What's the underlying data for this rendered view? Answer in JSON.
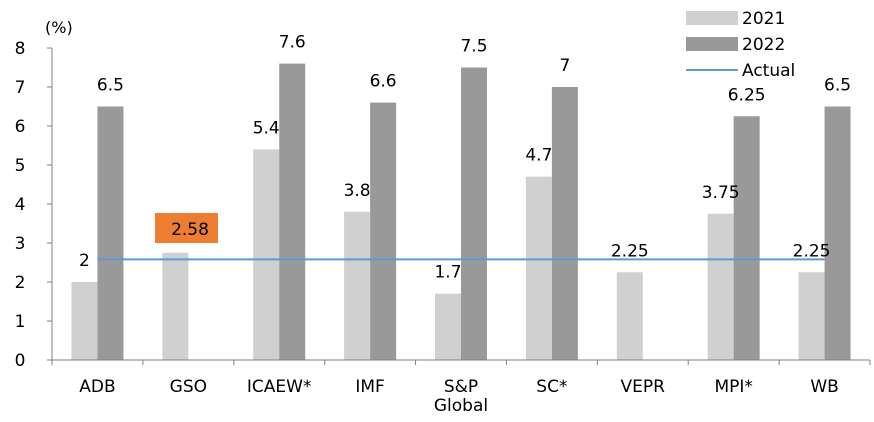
{
  "chart_data": {
    "type": "bar",
    "unit_label": "(%)",
    "categories": [
      "ADB",
      "GSO",
      "ICAEW*",
      "IMF",
      "S&P\nGlobal",
      "SC*",
      "VEPR",
      "MPI*",
      "WB"
    ],
    "series": [
      {
        "name": "2021",
        "color": "#d0d0d0",
        "values": [
          2,
          2.75,
          5.4,
          3.8,
          1.7,
          4.7,
          2.25,
          3.75,
          2.25
        ],
        "labels": [
          "2",
          "",
          "5.4",
          "3.8",
          "1.7",
          "4.7",
          "2.25",
          "3.75",
          "2.25"
        ]
      },
      {
        "name": "2022",
        "color": "#999999",
        "values": [
          6.5,
          null,
          7.6,
          6.6,
          7.5,
          7,
          null,
          6.25,
          6.5
        ],
        "labels": [
          "6.5",
          "",
          "7.6",
          "6.6",
          "7.5",
          "7",
          "",
          "6.25",
          "6.5"
        ]
      }
    ],
    "actual": {
      "name": "Actual",
      "value": 2.58,
      "label": "2.58",
      "color": "#5b9bd5",
      "label_bg": "#ed7d31"
    },
    "ylim": [
      0,
      8
    ],
    "yticks": [
      0,
      1,
      2,
      3,
      4,
      5,
      6,
      7,
      8
    ],
    "legend": [
      "2021",
      "2022",
      "Actual"
    ],
    "legend_position": "top-right",
    "grid": false
  }
}
